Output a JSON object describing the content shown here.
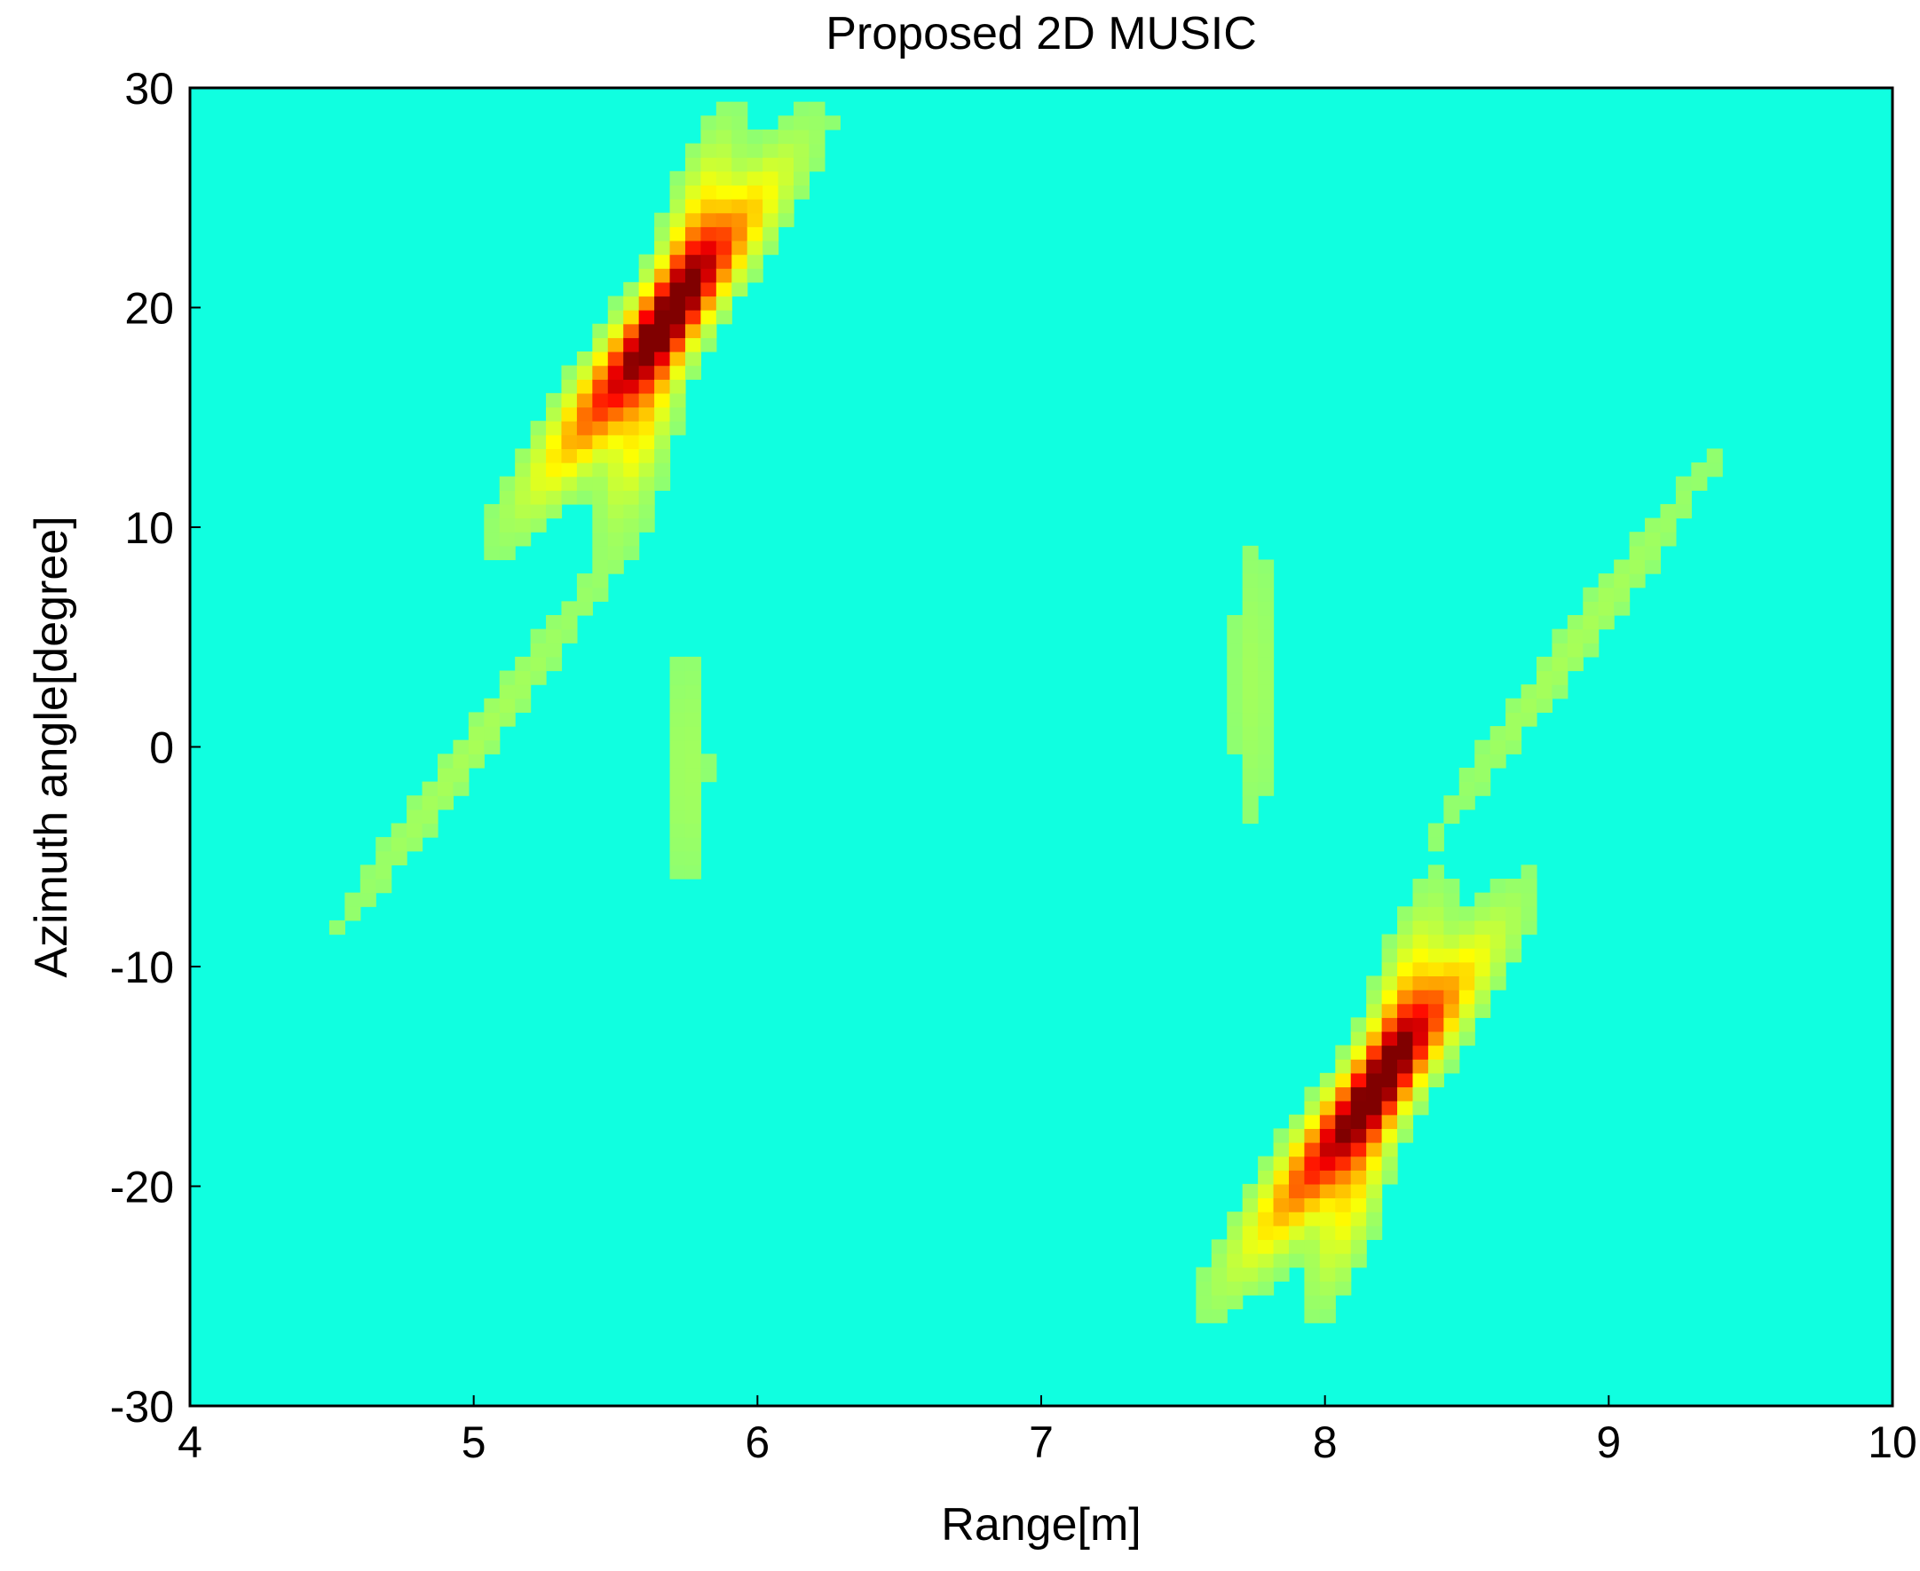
{
  "chart_data": {
    "type": "heatmap",
    "title": "Proposed 2D MUSIC",
    "xlabel": "Range[m]",
    "ylabel": "Azimuth angle[degree]",
    "xlim": [
      4,
      10
    ],
    "ylim": [
      -30,
      30
    ],
    "xticks": [
      4,
      5,
      6,
      7,
      8,
      9,
      10
    ],
    "yticks": [
      -30,
      -20,
      -10,
      0,
      10,
      20,
      30
    ],
    "colormap": "jet",
    "background_color": "#10ffe0",
    "grid": false,
    "peaks": [
      {
        "range": 5.65,
        "azimuth": 19
      },
      {
        "range": 8.15,
        "azimuth": -16
      }
    ]
  }
}
